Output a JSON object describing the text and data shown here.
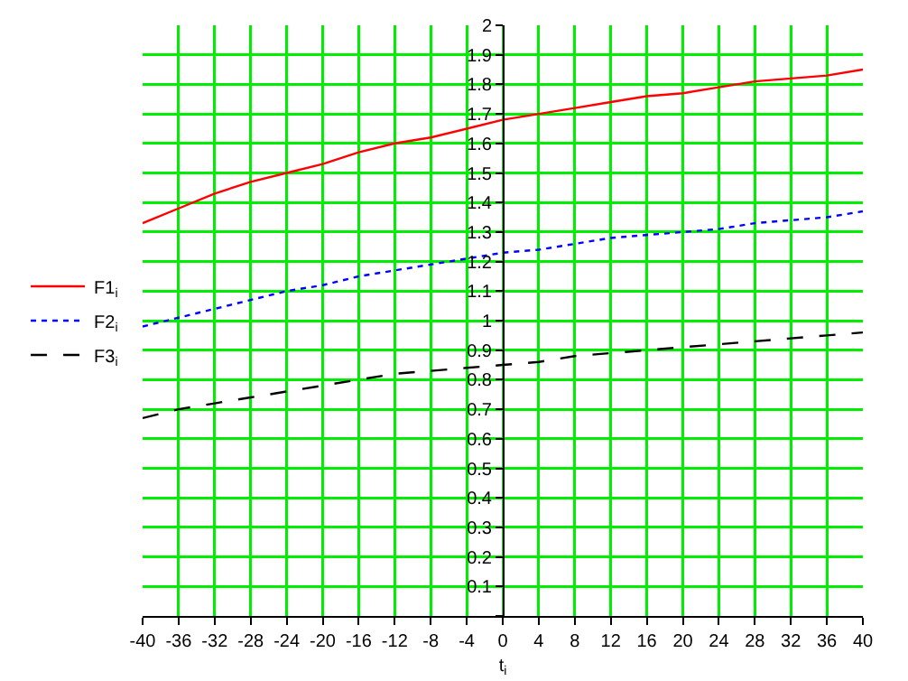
{
  "chart_data": {
    "type": "line",
    "xlabel": "t$_{i}$",
    "x": [
      -40,
      -36,
      -32,
      -28,
      -24,
      -20,
      -16,
      -12,
      -8,
      -4,
      0,
      4,
      8,
      12,
      16,
      20,
      24,
      28,
      32,
      36,
      40
    ],
    "series": [
      {
        "name": "F1$_{i}$",
        "color": "#ff0000",
        "line_style": "solid",
        "values": [
          1.33,
          1.38,
          1.43,
          1.47,
          1.5,
          1.53,
          1.57,
          1.6,
          1.62,
          1.65,
          1.68,
          1.7,
          1.72,
          1.74,
          1.76,
          1.77,
          1.79,
          1.81,
          1.82,
          1.83,
          1.85
        ]
      },
      {
        "name": "F2$_{i}$",
        "color": "#0000ff",
        "line_style": "dotted",
        "values": [
          0.98,
          1.01,
          1.04,
          1.07,
          1.1,
          1.12,
          1.15,
          1.17,
          1.19,
          1.21,
          1.23,
          1.24,
          1.26,
          1.28,
          1.29,
          1.3,
          1.31,
          1.33,
          1.34,
          1.35,
          1.37
        ]
      },
      {
        "name": "F3$_{i}$",
        "color": "#000000",
        "line_style": "dashed",
        "values": [
          0.67,
          0.7,
          0.72,
          0.74,
          0.76,
          0.78,
          0.8,
          0.82,
          0.83,
          0.84,
          0.85,
          0.86,
          0.88,
          0.89,
          0.9,
          0.91,
          0.92,
          0.93,
          0.94,
          0.95,
          0.96
        ]
      }
    ],
    "xlim": [
      -40,
      40
    ],
    "xticks": [
      -40,
      -36,
      -32,
      -28,
      -24,
      -20,
      -16,
      -12,
      -8,
      -4,
      0,
      4,
      8,
      12,
      16,
      20,
      24,
      28,
      32,
      36,
      40
    ],
    "ylim": [
      0,
      2
    ],
    "yticks": [
      {
        "value": 0,
        "label": null
      },
      0.1,
      0.2,
      0.3,
      0.4,
      0.5,
      0.6,
      0.7,
      0.8,
      0.9,
      1,
      1.1,
      1.2,
      1.3,
      1.4,
      1.5,
      1.6,
      1.7,
      1.8,
      1.9,
      2
    ],
    "grid": true,
    "legend": "left",
    "marker": "none"
  }
}
